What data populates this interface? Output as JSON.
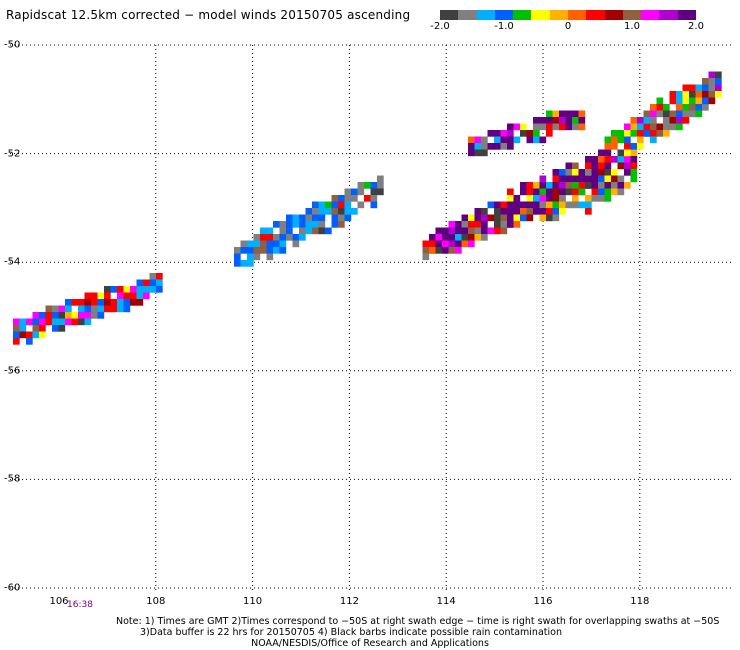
{
  "title": "Rapidscat 12.5km corrected − model winds 20150705 ascending",
  "colorbar": {
    "colors": [
      "#404040",
      "#808080",
      "#00b0ff",
      "#0060ff",
      "#00c000",
      "#ffff00",
      "#ffb000",
      "#ff6000",
      "#ff0000",
      "#a00000",
      "#906040",
      "#ff00ff",
      "#b000d0",
      "#600080"
    ],
    "ticks": [
      {
        "label": "-2.0",
        "value": -2.0
      },
      {
        "label": "-1.0",
        "value": -1.0
      },
      {
        "label": "0",
        "value": 0
      },
      {
        "label": "1.0",
        "value": 1.0
      },
      {
        "label": "2.0",
        "value": 2.0
      }
    ],
    "range": [
      -2.0,
      2.0
    ]
  },
  "map": {
    "lat_labels": [
      {
        "label": "-50",
        "value": -50
      },
      {
        "label": "-52",
        "value": -52
      },
      {
        "label": "-54",
        "value": -54
      },
      {
        "label": "-56",
        "value": -56
      },
      {
        "label": "-58",
        "value": -58
      },
      {
        "label": "-60",
        "value": -60
      }
    ],
    "lon_labels": [
      {
        "label": "106",
        "value": 106
      },
      {
        "label": "108",
        "value": 108
      },
      {
        "label": "110",
        "value": 110
      },
      {
        "label": "112",
        "value": 112
      },
      {
        "label": "114",
        "value": 114
      },
      {
        "label": "116",
        "value": 116
      },
      {
        "label": "118",
        "value": 118
      }
    ],
    "lon_range": [
      105,
      120
    ],
    "lat_range": [
      -60,
      -50
    ],
    "time_label": "16:38",
    "swaths": [
      {
        "name": "swath-west",
        "lon": [
          105.1,
          108.2
        ],
        "lat": [
          -55.9,
          -54.6
        ]
      },
      {
        "name": "swath-central",
        "lon": [
          109.6,
          112.7
        ],
        "lat": [
          -54.2,
          -52.8
        ]
      },
      {
        "name": "swath-east",
        "lon": [
          113.5,
          117.9
        ],
        "lat": [
          -54.2,
          -51.4
        ]
      },
      {
        "name": "swath-far-east",
        "lon": [
          117.9,
          119.9
        ],
        "lat": [
          -52.9,
          -50.5
        ]
      }
    ]
  },
  "notes": {
    "line1": "Note: 1) Times are GMT 2)Times correspond to −50S at right swath edge − time is right swath for overlapping swaths at −50S",
    "line2": "3)Data buffer is 22 hrs for 20150705 4) Black barbs indicate possible rain contamination",
    "line3": "NOAA/NESDIS/Office of Research and Applications"
  }
}
